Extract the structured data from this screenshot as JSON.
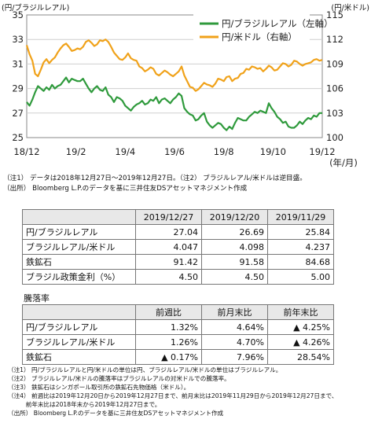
{
  "chart_data": {
    "type": "line",
    "left_unit": "(円/ブラジルレアル)",
    "right_unit": "(円/米ドル)",
    "x_ticks": [
      "18/12",
      "19/2",
      "19/4",
      "19/6",
      "19/8",
      "19/10",
      "19/12"
    ],
    "x_unit": "(年/月)",
    "left_axis": {
      "ticks": [
        "35",
        "33",
        "31",
        "29",
        "27",
        "25"
      ],
      "ylim": [
        25,
        35
      ]
    },
    "right_axis": {
      "ticks": [
        "115",
        "112",
        "109",
        "106",
        "103",
        "100"
      ],
      "ylim": [
        100,
        115
      ]
    },
    "legend_placement": "top-right",
    "series": [
      {
        "name": "円/ブラジルレアル（左軸）",
        "axis": "left",
        "color": "#2f9a3c",
        "values": [
          27.9,
          27.6,
          28.1,
          28.7,
          29.2,
          29.0,
          28.8,
          29.1,
          28.9,
          29.3,
          29.0,
          29.2,
          29.3,
          29.6,
          29.9,
          29.5,
          29.8,
          29.7,
          29.6,
          29.6,
          29.8,
          29.4,
          29.0,
          28.7,
          29.0,
          29.2,
          28.9,
          28.8,
          29.1,
          28.5,
          28.3,
          27.9,
          28.3,
          28.2,
          28.0,
          27.6,
          27.4,
          27.2,
          27.5,
          27.7,
          27.8,
          28.0,
          27.7,
          27.8,
          28.1,
          28.0,
          28.3,
          27.8,
          28.1,
          28.2,
          28.0,
          27.8,
          28.1,
          28.3,
          28.6,
          28.4,
          27.4,
          27.1,
          26.9,
          26.8,
          26.4,
          26.5,
          26.8,
          27.0,
          26.3,
          26.0,
          25.8,
          26.0,
          26.2,
          26.1,
          25.8,
          25.6,
          25.9,
          25.7,
          26.2,
          26.6,
          26.5,
          26.4,
          26.4,
          26.7,
          26.9,
          27.1,
          27.0,
          27.2,
          27.1,
          27.0,
          27.8,
          27.4,
          27.1,
          26.7,
          26.5,
          26.2,
          26.3,
          25.9,
          25.8,
          25.8,
          26.0,
          26.3,
          26.1,
          26.4,
          26.6,
          26.5,
          26.8,
          26.7,
          27.0,
          27.0
        ]
      },
      {
        "name": "円/米ドル（右軸）",
        "axis": "right",
        "color": "#f0a21a",
        "values": [
          111.3,
          110.2,
          109.4,
          107.8,
          107.5,
          108.3,
          109.2,
          109.6,
          109.1,
          109.5,
          109.8,
          110.4,
          110.9,
          111.3,
          111.5,
          111.1,
          110.6,
          110.7,
          110.9,
          110.8,
          111.1,
          111.7,
          111.9,
          111.6,
          111.2,
          111.4,
          111.9,
          111.8,
          112.0,
          111.7,
          111.1,
          110.4,
          110.0,
          109.6,
          109.5,
          109.8,
          110.3,
          109.7,
          109.5,
          109.4,
          108.7,
          108.5,
          108.1,
          108.3,
          108.6,
          108.4,
          107.8,
          107.6,
          107.9,
          108.2,
          108.0,
          107.7,
          107.5,
          107.8,
          108.1,
          108.7,
          107.6,
          106.9,
          106.2,
          106.1,
          105.7,
          105.9,
          106.3,
          106.7,
          106.5,
          106.4,
          106.2,
          106.6,
          107.2,
          107.1,
          106.9,
          107.4,
          107.5,
          106.9,
          107.2,
          107.3,
          107.8,
          107.9,
          108.4,
          108.3,
          108.7,
          108.6,
          108.4,
          108.5,
          108.1,
          108.4,
          108.8,
          108.6,
          108.2,
          108.3,
          108.7,
          109.1,
          109.0,
          108.7,
          108.9,
          109.4,
          109.3,
          109.0,
          108.8,
          109.0,
          109.1,
          109.2,
          109.5,
          109.6,
          109.4,
          109.5
        ]
      }
    ]
  },
  "chart_notes": [
    "（注1） データは2018年12月27日～2019年12月27日。（注2） ブラジルレアル/米ドルは逆目盛。",
    "（出所） Bloomberg L.P.のデータを基に三井住友DSアセットマネジメント作成"
  ],
  "table1": {
    "headers": [
      "",
      "2019/12/27",
      "2019/12/20",
      "2019/11/29"
    ],
    "rows": [
      [
        "円/ブラジルレアル",
        "27.04",
        "26.69",
        "25.84"
      ],
      [
        "ブラジルレアル/米ドル",
        "4.047",
        "4.098",
        "4.237"
      ],
      [
        "鉄鉱石",
        "91.42",
        "91.58",
        "84.68"
      ],
      [
        "ブラジル政策金利（%）",
        "4.50",
        "4.50",
        "5.00"
      ]
    ]
  },
  "table2_title": "騰落率",
  "table2": {
    "headers": [
      "",
      "前週比",
      "前月末比",
      "前年末比"
    ],
    "rows": [
      [
        "円/ブラジルレアル",
        "1.32%",
        "4.64%",
        "▲ 4.25%"
      ],
      [
        "ブラジルレアル/米ドル",
        "1.26%",
        "4.70%",
        "▲ 4.26%"
      ],
      [
        "鉄鉱石",
        "▲ 0.17%",
        "7.96%",
        "28.54%"
      ]
    ]
  },
  "footnotes": [
    "（注1） 円/ブラジルレアルと円/米ドルの単位は円、ブラジルレアル/米ドルの単位はブラジルレアル。",
    "（注2） ブラジルレアル/米ドルの騰落率はブラジルレアルの対米ドルでの騰落率。",
    "（注3） 鉄鉱石はシンガポール取引所の鉄鉱石先物価格（米ドル）。",
    "（注4） 前週比は2019年12月20日から2019年12月27日まで、前月末比は2019年11月29日から2019年12月27日まで、",
    "　　　前年末比は2018年末から2019年12月27日まで。",
    "（出所） Bloomberg L.P.のデータを基に三井住友DSアセットマネジメント作成"
  ]
}
